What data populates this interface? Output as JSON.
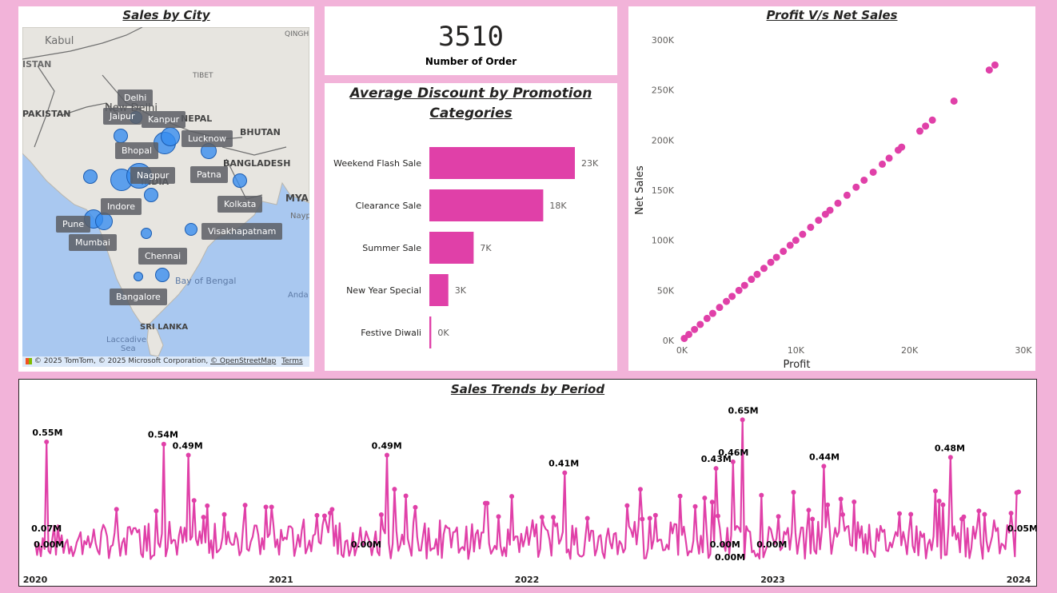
{
  "map": {
    "title": "Sales by City",
    "cities": [
      {
        "name": "Delhi"
      },
      {
        "name": "Jaipur"
      },
      {
        "name": "Kanpur"
      },
      {
        "name": "Lucknow"
      },
      {
        "name": "Bhopal"
      },
      {
        "name": "Nagpur"
      },
      {
        "name": "Patna"
      },
      {
        "name": "Kolkata"
      },
      {
        "name": "Indore"
      },
      {
        "name": "Pune"
      },
      {
        "name": "Visakhapatnam"
      },
      {
        "name": "Mumbai"
      },
      {
        "name": "Chennai"
      },
      {
        "name": "Bangalore"
      }
    ],
    "region_labels": [
      "Kabul",
      "QINGH",
      "ISTAN",
      "PAKISTAN",
      "TIBET",
      "New Delhi",
      "NEPAL",
      "BHUTAN",
      "BANGLADESH",
      "MYA",
      "Nayp",
      "INDIA",
      "Bay of Bengal",
      "Anda",
      "Laccadive",
      "Sea",
      "SRI LANKA"
    ],
    "attribution": {
      "copyright": "© 2025 TomTom, © 2025 Microsoft Corporation, ",
      "osm": "© OpenStreetMap",
      "terms": "Terms"
    },
    "colors": {
      "water": "#a9c8f0",
      "land": "#e7e5e0",
      "bubble": "#348cf0"
    }
  },
  "kpi": {
    "value": "3510",
    "label": "Number of Order"
  },
  "discount": {
    "title_line1": "Average Discount by Promotion",
    "title_line2": "Categories",
    "bar_color": "#e040a8",
    "chart_data": {
      "type": "bar",
      "orientation": "horizontal",
      "categories": [
        "Weekend Flash Sale",
        "Clearance Sale",
        "Summer Sale",
        "New Year Special",
        "Festive Diwali"
      ],
      "values": [
        23,
        18,
        7,
        3,
        0.3
      ],
      "labels": [
        "23K",
        "18K",
        "7K",
        "3K",
        "0K"
      ]
    }
  },
  "scatter": {
    "title": "Profit V/s Net Sales",
    "color": "#e040a8",
    "chart_data": {
      "type": "scatter",
      "xlabel": "Profit",
      "ylabel": "Net Sales",
      "xlim": [
        0,
        30000
      ],
      "ylim": [
        0,
        300000
      ],
      "x_ticks": [
        "0K",
        "10K",
        "20K",
        "30K"
      ],
      "y_ticks": [
        "0K",
        "50K",
        "100K",
        "150K",
        "200K",
        "250K",
        "300K"
      ],
      "points": [
        [
          200,
          2000
        ],
        [
          600,
          6000
        ],
        [
          1100,
          11000
        ],
        [
          1600,
          16000
        ],
        [
          2200,
          22000
        ],
        [
          2700,
          27000
        ],
        [
          3300,
          33000
        ],
        [
          3900,
          39000
        ],
        [
          4400,
          44000
        ],
        [
          5000,
          50000
        ],
        [
          5500,
          55000
        ],
        [
          6100,
          61000
        ],
        [
          6600,
          66000
        ],
        [
          7200,
          72000
        ],
        [
          7800,
          78000
        ],
        [
          8300,
          83000
        ],
        [
          8900,
          89000
        ],
        [
          9500,
          95000
        ],
        [
          10000,
          100000
        ],
        [
          10600,
          106000
        ],
        [
          11300,
          113000
        ],
        [
          12000,
          120000
        ],
        [
          12600,
          126000
        ],
        [
          13000,
          130000
        ],
        [
          13700,
          137000
        ],
        [
          14500,
          145000
        ],
        [
          15300,
          153000
        ],
        [
          16000,
          160000
        ],
        [
          16800,
          168000
        ],
        [
          17600,
          176000
        ],
        [
          18200,
          182000
        ],
        [
          19000,
          190000
        ],
        [
          19300,
          193000
        ],
        [
          20900,
          209000
        ],
        [
          21400,
          214000
        ],
        [
          22000,
          220000
        ],
        [
          23900,
          239000
        ],
        [
          27000,
          270000
        ],
        [
          27500,
          275000
        ]
      ]
    }
  },
  "trend": {
    "title": "Sales Trends by Period",
    "color": "#e040a8",
    "chart_data": {
      "type": "line",
      "x_labels": [
        "2020",
        "2021",
        "2022",
        "2023",
        "2024"
      ],
      "x_range": [
        2020.0,
        2024.0
      ],
      "y_unit": "M",
      "peaks": [
        {
          "t": 2020.05,
          "v": 0.55,
          "label": "0.55M"
        },
        {
          "t": 2020.52,
          "v": 0.54,
          "label": "0.54M"
        },
        {
          "t": 2020.62,
          "v": 0.49,
          "label": "0.49M"
        },
        {
          "t": 2021.43,
          "v": 0.49,
          "label": "0.49M"
        },
        {
          "t": 2022.15,
          "v": 0.41,
          "label": "0.41M"
        },
        {
          "t": 2022.77,
          "v": 0.43,
          "label": "0.43M"
        },
        {
          "t": 2022.84,
          "v": 0.46,
          "label": "0.46M"
        },
        {
          "t": 2022.88,
          "v": 0.65,
          "label": "0.65M"
        },
        {
          "t": 2023.21,
          "v": 0.44,
          "label": "0.44M"
        },
        {
          "t": 2023.72,
          "v": 0.48,
          "label": "0.48M"
        }
      ],
      "low_labels": [
        {
          "t": 2020.02,
          "label": "0.07M"
        },
        {
          "t": 2020.03,
          "label": "0.00M"
        },
        {
          "t": 2021.32,
          "label": "0.00M"
        },
        {
          "t": 2022.78,
          "label": "0.00M"
        },
        {
          "t": 2022.8,
          "label": "0.00M"
        },
        {
          "t": 2022.97,
          "label": "0.00M"
        },
        {
          "t": 2023.99,
          "label": "0.05M"
        }
      ]
    }
  }
}
